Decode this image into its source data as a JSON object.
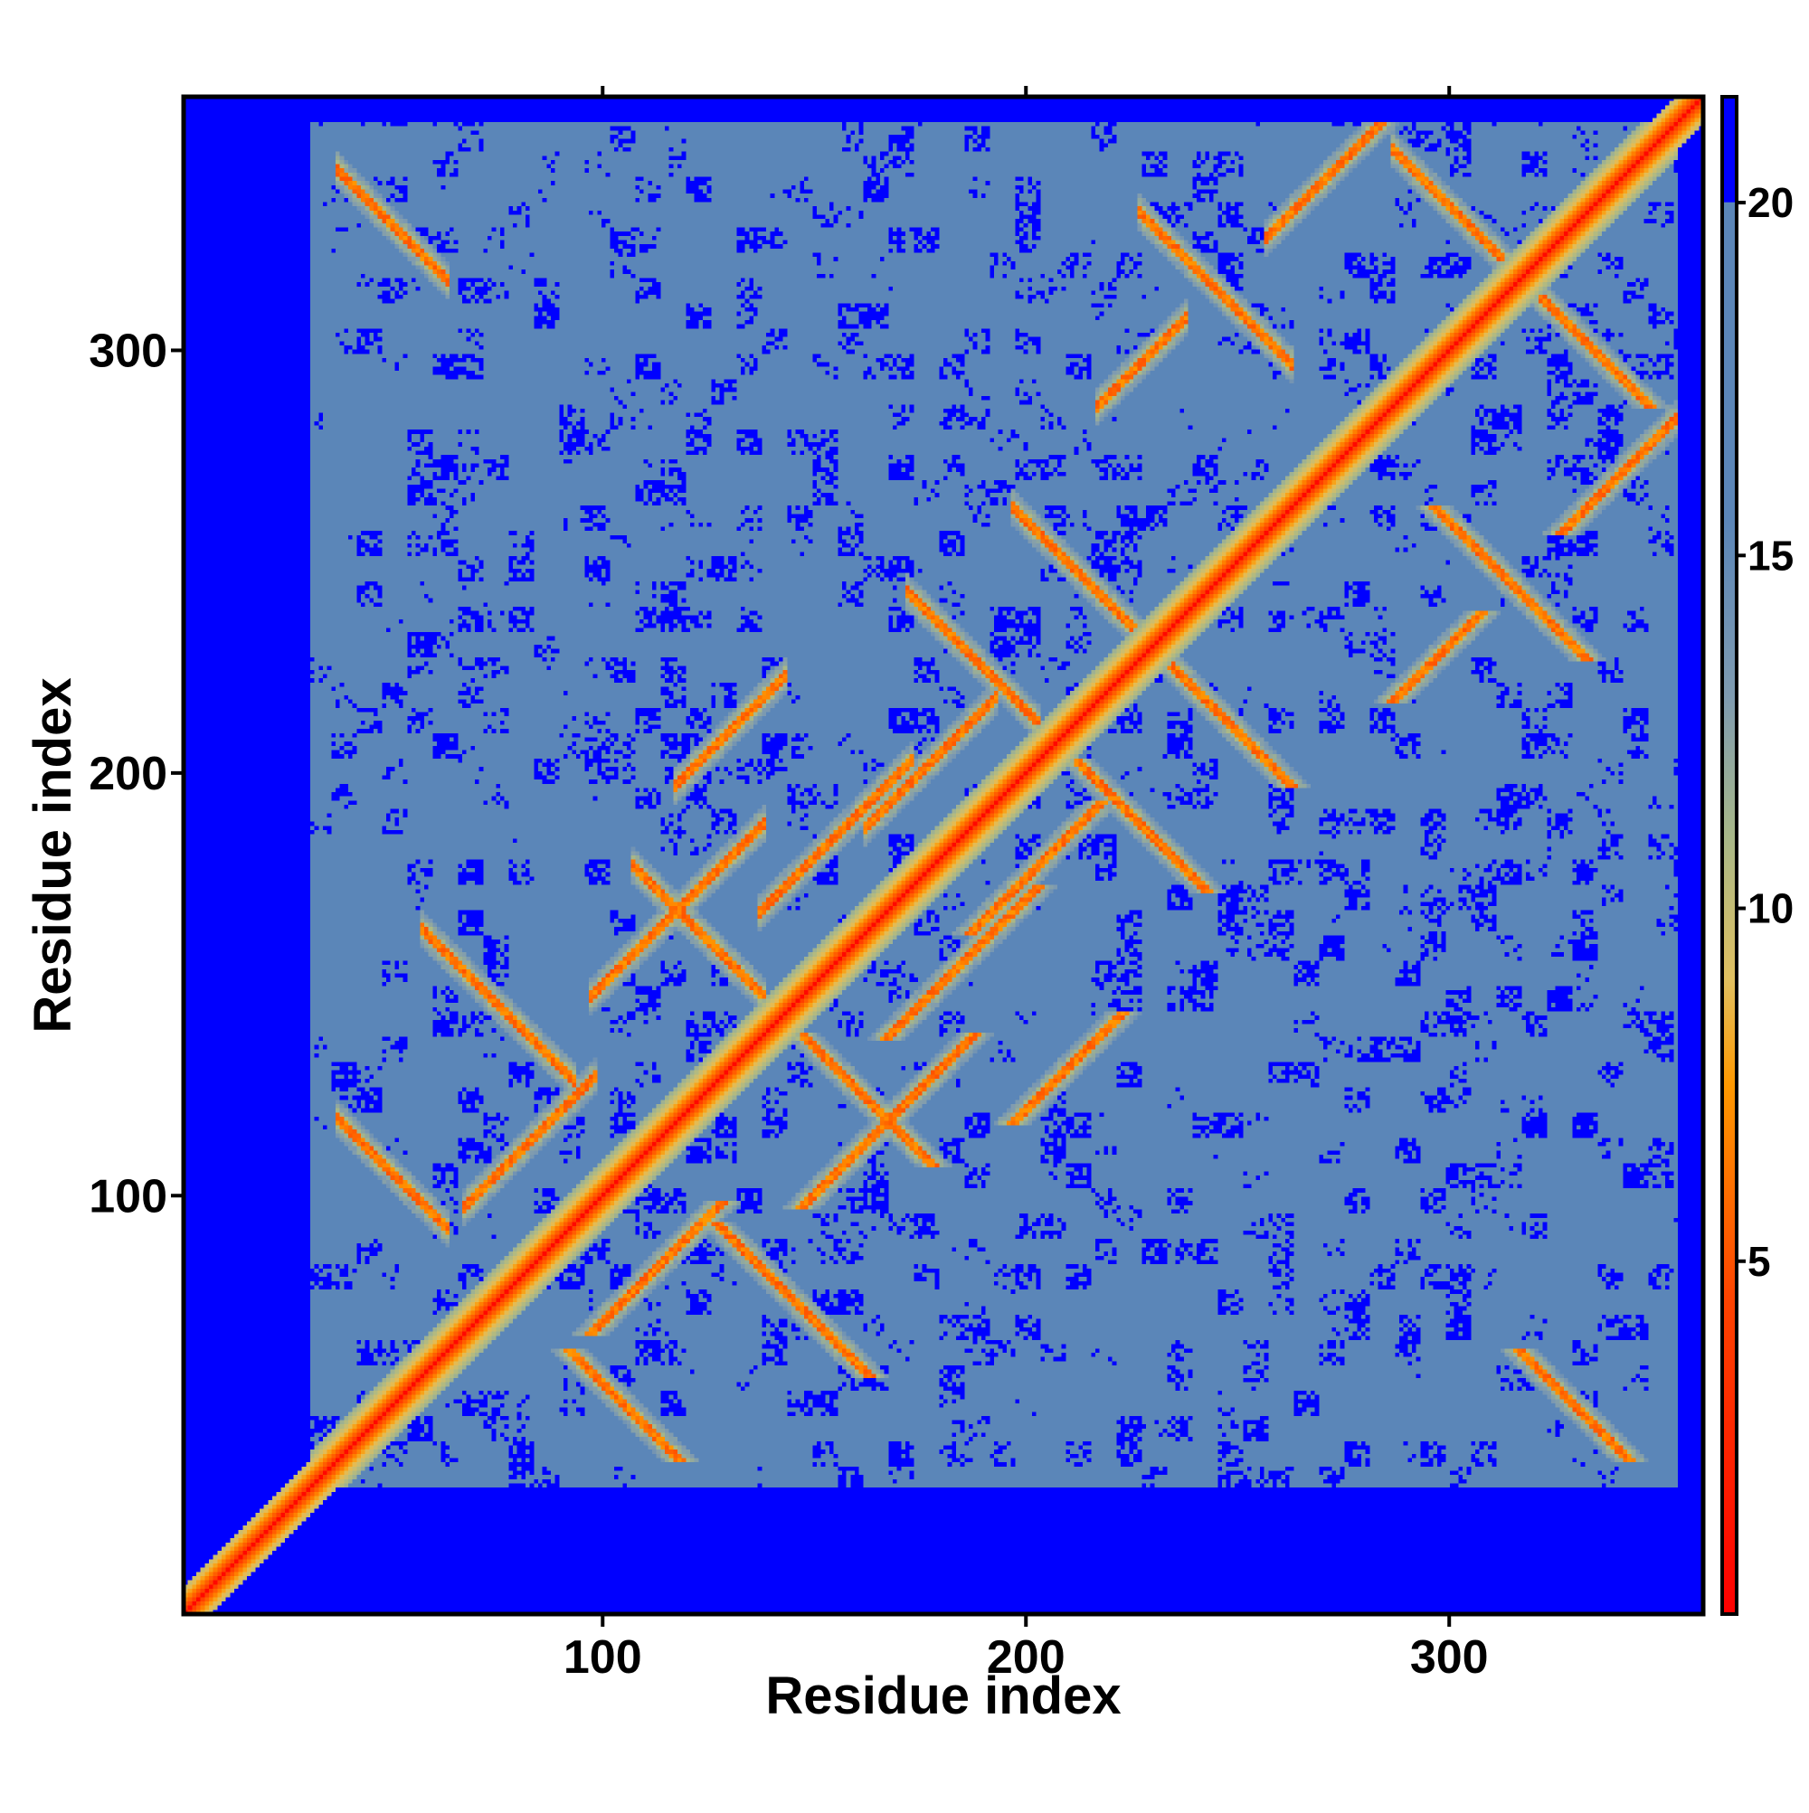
{
  "chart_data": {
    "type": "heatmap",
    "title": "",
    "xlabel": "Residue index",
    "ylabel": "Residue index",
    "n_residues": 360,
    "xlim": [
      1,
      360
    ],
    "ylim": [
      1,
      360
    ],
    "x_ticks": [
      100,
      200,
      300
    ],
    "y_ticks": [
      100,
      200,
      300
    ],
    "x_tick_labels": [
      "100",
      "200",
      "300"
    ],
    "y_tick_labels": [
      "100",
      "200",
      "300"
    ],
    "colorbar": {
      "range": [
        0,
        21.5
      ],
      "ticks": [
        5,
        10,
        15,
        20
      ],
      "tick_labels": [
        "5",
        "10",
        "15",
        "20"
      ],
      "stops": [
        {
          "value": 0,
          "color": "#ff0000"
        },
        {
          "value": 4.5,
          "color": "#ff4400"
        },
        {
          "value": 7.5,
          "color": "#ff9900"
        },
        {
          "value": 9,
          "color": "#e0c060"
        },
        {
          "value": 11,
          "color": "#a8b888"
        },
        {
          "value": 13,
          "color": "#7f9bb0"
        },
        {
          "value": 15.5,
          "color": "#5b86b8"
        },
        {
          "value": 20,
          "color": "#5b86b8"
        },
        {
          "value": 20.01,
          "color": "#0000ff"
        },
        {
          "value": 21.5,
          "color": "#0000ff"
        }
      ]
    },
    "colors": {
      "contact": "#ff0000",
      "near": "#ff9900",
      "mid": "#a8b888",
      "background": "#5b86b8",
      "cutoff": "#0000ff"
    },
    "grid": false,
    "legend": "colorbar right"
  }
}
